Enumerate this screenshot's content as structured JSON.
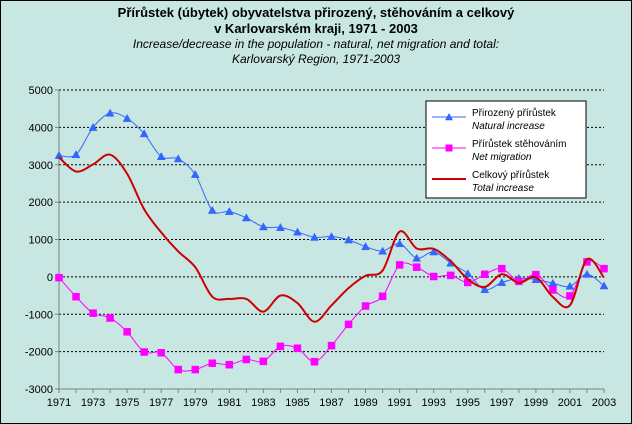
{
  "chart_data": {
    "type": "line",
    "title": "Přírůstek (úbytek) obyvatelstva přirozený, stěhováním a celkový",
    "title2": "v Karlovarském kraji, 1971 - 2003",
    "subtitle": "Increase/decrease in the population - natural, net migration and total:",
    "subtitle2": "Karlovarský Region, 1971-2003",
    "xlabel": "",
    "ylabel": "",
    "ylim": [
      -3000,
      5000
    ],
    "xlim": [
      1971,
      2003
    ],
    "y_ticks": [
      -3000,
      -2000,
      -1000,
      0,
      1000,
      2000,
      3000,
      4000,
      5000
    ],
    "y_tick_labels": [
      "-3000",
      "-2000",
      "-1000",
      "0",
      "1000",
      "2000",
      "3000",
      "4000",
      "5000"
    ],
    "x_ticks": [
      1971,
      1973,
      1975,
      1977,
      1979,
      1981,
      1983,
      1985,
      1987,
      1989,
      1991,
      1993,
      1995,
      1997,
      1999,
      2001,
      2003
    ],
    "x_tick_labels": [
      "1971",
      "1973",
      "1975",
      "1977",
      "1979",
      "1981",
      "1983",
      "1985",
      "1987",
      "1989",
      "1991",
      "1993",
      "1995",
      "1997",
      "1999",
      "2001",
      "2003"
    ],
    "x": [
      1971,
      1972,
      1973,
      1974,
      1975,
      1976,
      1977,
      1978,
      1979,
      1980,
      1981,
      1982,
      1983,
      1984,
      1985,
      1986,
      1987,
      1988,
      1989,
      1990,
      1991,
      1992,
      1993,
      1994,
      1995,
      1996,
      1997,
      1998,
      1999,
      2000,
      2001,
      2002,
      2003
    ],
    "series": [
      {
        "name": "Přirozený přírůstek",
        "name_en": "Natural increase",
        "color": "#3366FF",
        "marker": "triangle",
        "values": [
          3250,
          3270,
          4000,
          4380,
          4240,
          3830,
          3220,
          3160,
          2740,
          1780,
          1750,
          1580,
          1340,
          1320,
          1200,
          1060,
          1080,
          990,
          810,
          690,
          890,
          500,
          670,
          370,
          90,
          -340,
          -150,
          -40,
          -70,
          -170,
          -250,
          70,
          -240
        ]
      },
      {
        "name": "Přírůstek stěhováním",
        "name_en": "Net migration",
        "color": "#FF00FF",
        "marker": "square",
        "values": [
          -20,
          -530,
          -970,
          -1100,
          -1470,
          -2010,
          -2030,
          -2480,
          -2480,
          -2310,
          -2350,
          -2210,
          -2260,
          -1860,
          -1910,
          -2270,
          -1840,
          -1270,
          -780,
          -520,
          320,
          260,
          10,
          40,
          -150,
          70,
          220,
          -120,
          60,
          -350,
          -510,
          400,
          220
        ]
      },
      {
        "name": "Celkový přírůstek",
        "name_en": "Total increase",
        "color": "#CC0000",
        "marker": "none",
        "values": [
          3200,
          2820,
          3010,
          3270,
          2760,
          1810,
          1190,
          680,
          260,
          -530,
          -590,
          -590,
          -930,
          -500,
          -700,
          -1200,
          -760,
          -300,
          30,
          170,
          1210,
          760,
          750,
          420,
          -60,
          -270,
          70,
          -160,
          -10,
          -540,
          -760,
          470,
          -20
        ]
      }
    ],
    "legend": "top-right"
  }
}
